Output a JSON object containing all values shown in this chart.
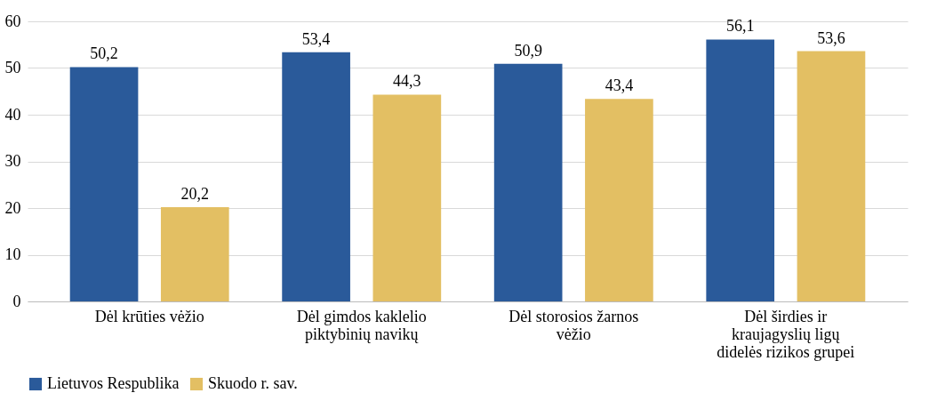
{
  "chart_data": {
    "type": "bar",
    "categories": [
      "Dėl krūties vėžio",
      "Dėl gimdos kaklelio piktybinių navikų",
      "Dėl storosios žarnos vėžio",
      "Dėl širdies ir kraujagyslių ligų didelės rizikos grupei"
    ],
    "series": [
      {
        "name": "Lietuvos Respublika",
        "color": "#2a5a9a",
        "values": [
          50.2,
          53.4,
          50.9,
          56.1
        ],
        "value_labels": [
          "50,2",
          "53,4",
          "50,9",
          "56,1"
        ]
      },
      {
        "name": "Skuodo r. sav.",
        "color": "#e3bf63",
        "values": [
          20.2,
          44.3,
          43.4,
          53.6
        ],
        "value_labels": [
          "20,2",
          "44,3",
          "43,4",
          "53,6"
        ]
      }
    ],
    "ylim": [
      0,
      60
    ],
    "yticks": [
      0,
      10,
      20,
      30,
      40,
      50,
      60
    ],
    "grid": "y",
    "legend": "bottom"
  }
}
